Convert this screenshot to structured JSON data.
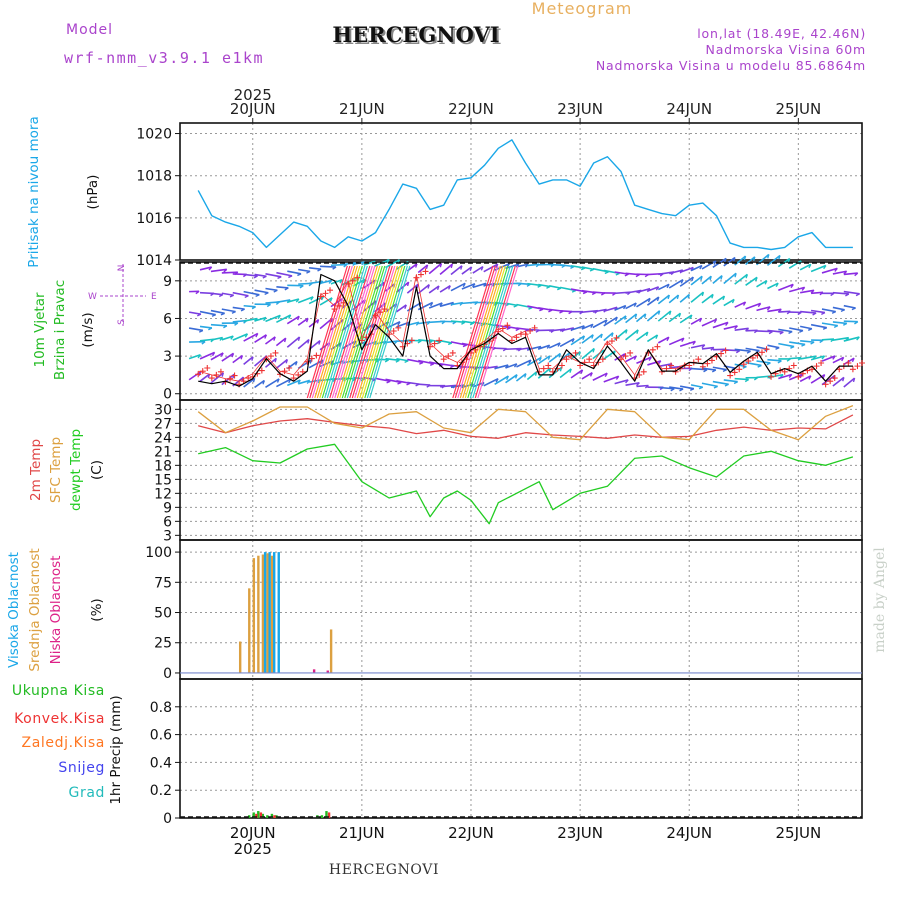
{
  "header": {
    "model_label": "Model",
    "model_name": "wrf-nmm_v3.9.1 e1km",
    "title": "HERCEGNOVI",
    "meteogram": "Meteogram",
    "lonlat": "lon,lat (18.49E, 42.46N)",
    "elevation": "Nadmorska Visina 60m",
    "model_elevation": "Nadmorska Visina u modelu 85.6864m",
    "footer_title": "HERCEGNOVI",
    "watermark": "made by Angel"
  },
  "colors": {
    "pressure": "#1aa7e8",
    "wind_label": "#22bb22",
    "wind_speed": "#000000",
    "gust": "#ee3333",
    "temp2m": "#e04848",
    "sfc": "#dca040",
    "dew": "#22cc22",
    "high": "#1aa7e8",
    "mid": "#dca040",
    "low": "#dd2288",
    "total": "#22bb22",
    "conv": "#ee3333",
    "frozen": "#ff7722",
    "snow": "#4444ee",
    "graupel": "#22bbbb",
    "compass": "#aa44cc"
  },
  "chart_data": [
    {
      "type": "line",
      "panel": "pressure",
      "ylabel_left": "Pritisak na nivou mora",
      "ylabel_unit": "(hPa)",
      "ylim": [
        1014,
        1020.5
      ],
      "yticks": [
        "1014",
        "1016",
        "1018",
        "1020"
      ],
      "x_top_ticks": [
        "20JUN",
        "21JUN",
        "22JUN",
        "23JUN",
        "24JUN",
        "25JUN"
      ],
      "x_top_year": "2025",
      "x_unit": "hours from 2025-06-19 12UTC",
      "x": [
        0,
        3,
        6,
        9,
        12,
        15,
        18,
        21,
        24,
        27,
        30,
        33,
        36,
        39,
        42,
        45,
        48,
        51,
        54,
        57,
        60,
        63,
        66,
        69,
        72,
        75,
        78,
        81,
        84,
        87,
        90,
        93,
        96,
        99,
        102,
        105,
        108,
        111,
        114,
        117,
        120,
        123,
        126,
        129,
        132,
        135,
        138,
        141,
        144
      ],
      "values": [
        1017.3,
        1016.1,
        1015.8,
        1015.6,
        1015.3,
        1014.6,
        1015.2,
        1015.8,
        1015.6,
        1014.9,
        1014.6,
        1015.1,
        1014.9,
        1015.3,
        1016.4,
        1017.6,
        1017.4,
        1016.4,
        1016.6,
        1017.8,
        1017.9,
        1018.5,
        1019.3,
        1019.7,
        1018.6,
        1017.6,
        1017.8,
        1017.8,
        1017.5,
        1018.6,
        1018.9,
        1018.2,
        1016.6,
        1016.4,
        1016.2,
        1016.1,
        1016.6,
        1016.7,
        1016.1,
        1014.8,
        1014.6,
        1014.6,
        1014.5,
        1014.6,
        1015.1,
        1015.3,
        1014.6,
        1014.6,
        1014.6
      ],
      "grid": true
    },
    {
      "type": "line",
      "panel": "wind",
      "ylabel_left": [
        "10m Vjetar",
        "Brzina i Pravac"
      ],
      "ylabel_unit": "(m/s)",
      "compass": {
        "w": "W",
        "e": "E",
        "s": "S",
        "n": "N"
      },
      "ylim": [
        -0.5,
        10.5
      ],
      "yticks": [
        "0",
        "3",
        "6",
        "9"
      ],
      "series": [
        {
          "role": "speed",
          "x": [
            0,
            3,
            6,
            9,
            12,
            15,
            18,
            21,
            24,
            27,
            30,
            33,
            36,
            39,
            42,
            45,
            48,
            51,
            54,
            57,
            60,
            63,
            66,
            69,
            72,
            75,
            78,
            81,
            84,
            87,
            90,
            93,
            96,
            99,
            102,
            105,
            108,
            111,
            114,
            117,
            120,
            123,
            126,
            129,
            132,
            135,
            138,
            141,
            144
          ],
          "values": [
            1.0,
            0.8,
            1.0,
            0.6,
            1.2,
            2.8,
            1.6,
            1.0,
            1.8,
            9.5,
            9.0,
            7.0,
            3.5,
            5.5,
            4.5,
            3.0,
            8.5,
            3.0,
            2.0,
            2.0,
            3.5,
            4.0,
            4.8,
            4.0,
            4.5,
            1.5,
            1.5,
            3.5,
            2.5,
            2.0,
            3.8,
            2.5,
            1.0,
            3.5,
            1.8,
            1.8,
            2.5,
            2.4,
            3.2,
            1.7,
            2.6,
            3.3,
            1.6,
            2.0,
            1.6,
            2.2,
            1.0,
            2.2,
            2.2
          ]
        },
        {
          "role": "gust",
          "x": [
            0,
            3,
            6,
            9,
            12,
            15,
            18,
            21,
            24,
            27,
            30,
            33,
            36,
            39,
            42,
            45,
            48,
            51,
            54,
            57,
            60,
            63,
            66,
            69,
            72,
            75,
            78,
            81,
            84,
            87,
            90,
            93,
            96,
            99,
            102,
            105,
            108,
            111,
            114,
            117,
            120,
            123,
            126,
            129,
            132,
            135,
            138,
            141,
            144
          ],
          "values": [
            1.8,
            1.5,
            1.2,
            1.0,
            1.6,
            3.0,
            1.8,
            1.5,
            2.8,
            8.0,
            7.0,
            9.0,
            4.5,
            6.5,
            5.0,
            4.0,
            9.5,
            4.0,
            3.0,
            2.5,
            3.5,
            4.2,
            5.2,
            4.5,
            5.0,
            2.0,
            2.0,
            3.0,
            2.5,
            2.5,
            4.2,
            3.0,
            1.5,
            3.5,
            2.0,
            2.0,
            2.5,
            2.4,
            3.2,
            1.7,
            2.6,
            3.3,
            1.6,
            2.0,
            1.6,
            2.2,
            1.0,
            2.2,
            2.2
          ]
        }
      ],
      "grid": true
    },
    {
      "type": "line",
      "panel": "temperature",
      "ylabel_left": [
        "2m Temp",
        "SFC Temp",
        "dewpt Temp"
      ],
      "ylabel_unit": "(C)",
      "ylim": [
        2,
        32
      ],
      "yticks": [
        "3",
        "6",
        "9",
        "12",
        "15",
        "18",
        "21",
        "24",
        "27",
        "30"
      ],
      "series": [
        {
          "role": "temp2m",
          "x": [
            0,
            6,
            12,
            18,
            24,
            30,
            36,
            42,
            48,
            54,
            60,
            66,
            72,
            78,
            84,
            90,
            96,
            102,
            108,
            114,
            120,
            126,
            132,
            138,
            144
          ],
          "values": [
            26.5,
            25.0,
            26.5,
            27.5,
            28.0,
            27.2,
            26.5,
            26.0,
            24.8,
            25.5,
            24.2,
            23.8,
            25.0,
            24.5,
            24.2,
            23.8,
            24.5,
            24.0,
            24.2,
            25.5,
            26.2,
            25.5,
            26.0,
            25.8,
            28.8
          ]
        },
        {
          "role": "sfc",
          "x": [
            0,
            6,
            12,
            18,
            24,
            30,
            36,
            42,
            48,
            54,
            60,
            66,
            72,
            78,
            84,
            90,
            96,
            102,
            108,
            114,
            120,
            126,
            132,
            138,
            144
          ],
          "values": [
            29.5,
            25.0,
            27.5,
            30.5,
            30.5,
            27.0,
            26.0,
            29.0,
            29.5,
            26.0,
            25.0,
            30.0,
            29.5,
            24.0,
            23.5,
            30.0,
            29.5,
            24.0,
            23.5,
            30.0,
            30.0,
            25.5,
            23.5,
            28.5,
            30.8
          ]
        },
        {
          "role": "dew",
          "x": [
            0,
            6,
            12,
            18,
            24,
            30,
            36,
            42,
            48,
            51,
            54,
            57,
            60,
            64,
            66,
            72,
            75,
            78,
            84,
            90,
            96,
            102,
            108,
            114,
            120,
            126,
            132,
            138,
            144
          ],
          "values": [
            20.5,
            21.8,
            19.0,
            18.5,
            21.5,
            22.5,
            14.5,
            11.0,
            12.5,
            7.0,
            11.0,
            12.5,
            10.5,
            5.5,
            10.0,
            13.0,
            14.5,
            8.5,
            12.0,
            13.5,
            19.5,
            20.0,
            17.5,
            15.5,
            20.0,
            21.0,
            19.0,
            18.0,
            19.8
          ]
        }
      ],
      "grid": true
    },
    {
      "type": "bar",
      "panel": "clouds",
      "ylabel_left": [
        "Visoka Oblacnost",
        "Srednja Oblacnost",
        "Niska Oblacnost"
      ],
      "ylabel_unit": "(%)",
      "ylim": [
        -5,
        110
      ],
      "yticks": [
        "0",
        "25",
        "50",
        "75",
        "100"
      ],
      "series": [
        {
          "role": "mid",
          "x": [
            9.5,
            11.5,
            12.5,
            13.5,
            14.5,
            15.5,
            16.5,
            29.5
          ],
          "values": [
            26,
            70,
            95,
            97,
            98,
            99,
            97,
            36
          ]
        },
        {
          "role": "high",
          "x": [
            14.5,
            15.5,
            16.5,
            17.5
          ],
          "values": [
            100,
            100,
            100,
            100
          ]
        },
        {
          "role": "low",
          "x": [
            25.5,
            28.5
          ],
          "values": [
            3,
            2
          ]
        }
      ],
      "grid": true
    },
    {
      "type": "bar",
      "panel": "precip",
      "ylabel_left": [
        "Ukupna Kisa",
        "Konvek.Kisa",
        "Zaledj.Kisa",
        "Snijeg",
        "Grad"
      ],
      "ylabel_unit": "1hr Precip (mm)",
      "ylim": [
        0,
        1.0
      ],
      "yticks": [
        "0",
        "0.2",
        "0.4",
        "0.6",
        "0.8"
      ],
      "x_bottom_ticks": [
        "20JUN",
        "21JUN",
        "22JUN",
        "23JUN",
        "24JUN",
        "25JUN"
      ],
      "x_bottom_year": "2025",
      "series": [
        {
          "role": "total",
          "x": [
            11.5,
            12.5,
            13.5,
            14.5,
            15.5,
            16.5,
            17.5,
            26.5,
            27.5,
            28.5
          ],
          "values": [
            0.02,
            0.04,
            0.05,
            0.03,
            0.02,
            0.03,
            0.02,
            0.02,
            0.02,
            0.05
          ]
        },
        {
          "role": "conv",
          "x": [
            12.5,
            13.5,
            16.5,
            28.5
          ],
          "values": [
            0.03,
            0.04,
            0.02,
            0.04
          ]
        }
      ],
      "grid": true
    }
  ]
}
